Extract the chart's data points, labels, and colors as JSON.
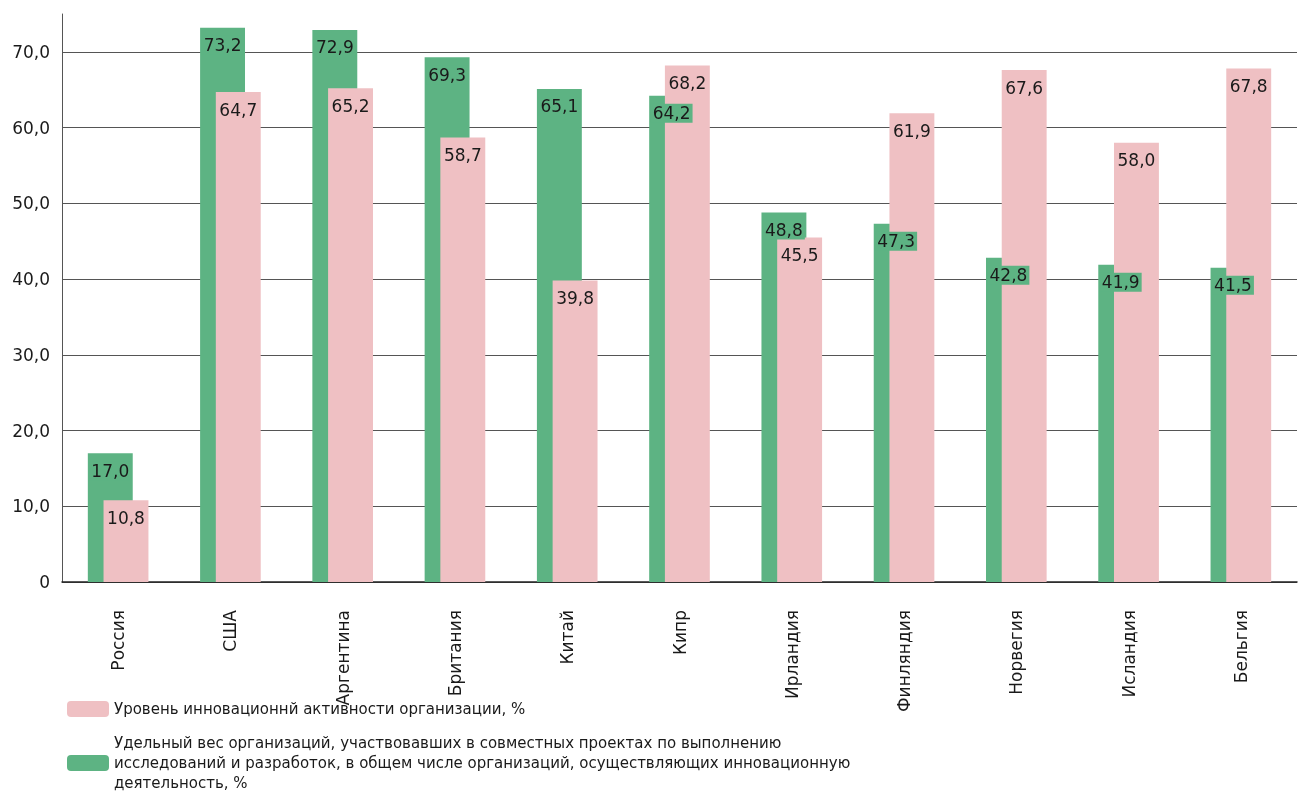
{
  "chart_data": {
    "type": "bar",
    "categories": [
      "Россия",
      "США",
      "Аргентина",
      "Британия",
      "Китай",
      "Кипр",
      "Ирландия",
      "Финляндия",
      "Норвегия",
      "Исландия",
      "Бельгия"
    ],
    "series": [
      {
        "name": "Удельный вес организаций, участвовавших в совместных проектах по выполнению исследований и разработок, в общем числе организаций, осуществляющих инновационную деятельность, %",
        "color": "#5db383",
        "values": [
          17.0,
          73.2,
          72.9,
          69.3,
          65.1,
          64.2,
          48.8,
          47.3,
          42.8,
          41.9,
          41.5
        ],
        "value_labels": [
          "17,0",
          "73,2",
          "72,9",
          "69,3",
          "65,1",
          "64,2",
          "48,8",
          "47,3",
          "42,8",
          "41,9",
          "41,5"
        ]
      },
      {
        "name": "Уровень инновационнй активности организации, %",
        "color": "#efc0c3",
        "values": [
          10.8,
          64.7,
          65.2,
          58.7,
          39.8,
          68.2,
          45.5,
          61.9,
          67.6,
          58.0,
          67.8
        ],
        "value_labels": [
          "10,8",
          "64,7",
          "65,2",
          "58,7",
          "39,8",
          "68,2",
          "45,5",
          "61,9",
          "67,6",
          "58,0",
          "67,8"
        ]
      }
    ],
    "ylim": [
      0,
      75
    ],
    "yticks": [
      0,
      {
        "value": 10,
        "label": "10,0"
      },
      {
        "value": 20,
        "label": "20,0"
      },
      {
        "value": 30,
        "label": "30,0"
      },
      {
        "value": 40,
        "label": "40,0"
      },
      {
        "value": 50,
        "label": "50,0"
      },
      {
        "value": 60,
        "label": "60,0"
      },
      {
        "value": 70,
        "label": "70,0"
      }
    ],
    "grid": "y",
    "legend": "bottom left"
  }
}
